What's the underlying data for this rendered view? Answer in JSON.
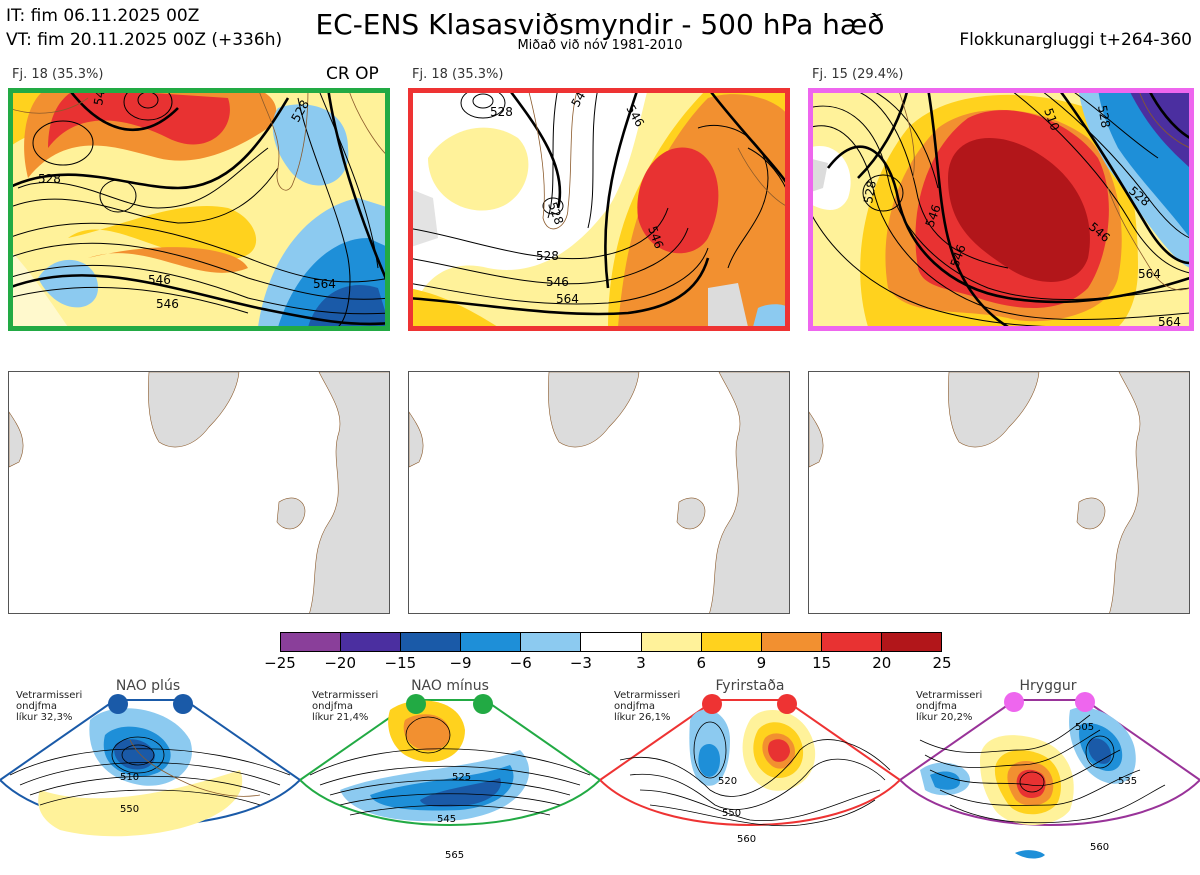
{
  "header": {
    "it_line": "IT: fim 06.11.2025 00Z",
    "vt_line": "VT: fim 20.11.2025 00Z  (+336h)",
    "title": "EC-ENS Klasasviðsmyndir - 500 hPa hæð",
    "subtitle": "Miðað við nóv 1981-2010",
    "window": "Flokkunargluggi t+264-360"
  },
  "colors": {
    "green_frame": "#22aa44",
    "red_frame": "#ee3333",
    "magenta_frame": "#ee66ee",
    "blue_frame": "#1a5aa8",
    "purple_frame": "#993399",
    "land": "#dcdcdc",
    "coast": "#8b5a2b"
  },
  "panels": [
    {
      "label": "Fj. 18 (35.3%)",
      "tag": "CR OP",
      "contours": [
        "546",
        "528",
        "546",
        "564",
        "546",
        "528"
      ]
    },
    {
      "label": "Fj. 18 (35.3%)",
      "tag": "",
      "contours": [
        "528",
        "546",
        "546",
        "564",
        "546",
        "546",
        "528",
        "528"
      ]
    },
    {
      "label": "Fj. 15 (29.4%)",
      "tag": "",
      "contours": [
        "528",
        "510",
        "528",
        "546",
        "546",
        "564",
        "564",
        "546",
        "528"
      ]
    }
  ],
  "chart_data": {
    "type": "heatmap",
    "title": "EC-ENS Klasasviðsmyndir - 500 hPa hæð",
    "colorbar": {
      "ticks": [
        "−25",
        "−20",
        "−15",
        "−9",
        "−6",
        "−3",
        "3",
        "6",
        "9",
        "15",
        "20",
        "25"
      ],
      "colors": [
        "#8a3f9a",
        "#4b2fa0",
        "#1a5aa8",
        "#1e8fd8",
        "#8ccaf0",
        "#ffffff",
        "#fff29a",
        "#ffd21e",
        "#f29030",
        "#e83232",
        "#b2161a"
      ]
    },
    "regimes": [
      {
        "name": "NAO plús",
        "line1": "Vetrarmisseri",
        "line2": "ondjfma",
        "line3": "líkur 32,3%",
        "contours": [
          "510",
          "550"
        ]
      },
      {
        "name": "NAO mínus",
        "line1": "Vetrarmisseri",
        "line2": "ondjfma",
        "line3": "líkur 21,4%",
        "contours": [
          "525",
          "545",
          "565"
        ]
      },
      {
        "name": "Fyrirstaða",
        "line1": "Vetrarmisseri",
        "line2": "ondjfma",
        "line3": "líkur 26,1%",
        "contours": [
          "520",
          "550",
          "560"
        ]
      },
      {
        "name": "Hryggur",
        "line1": "Vetrarmisseri",
        "line2": "ondjfma",
        "line3": "líkur 20,2%",
        "contours": [
          "505",
          "535",
          "560"
        ]
      }
    ]
  }
}
